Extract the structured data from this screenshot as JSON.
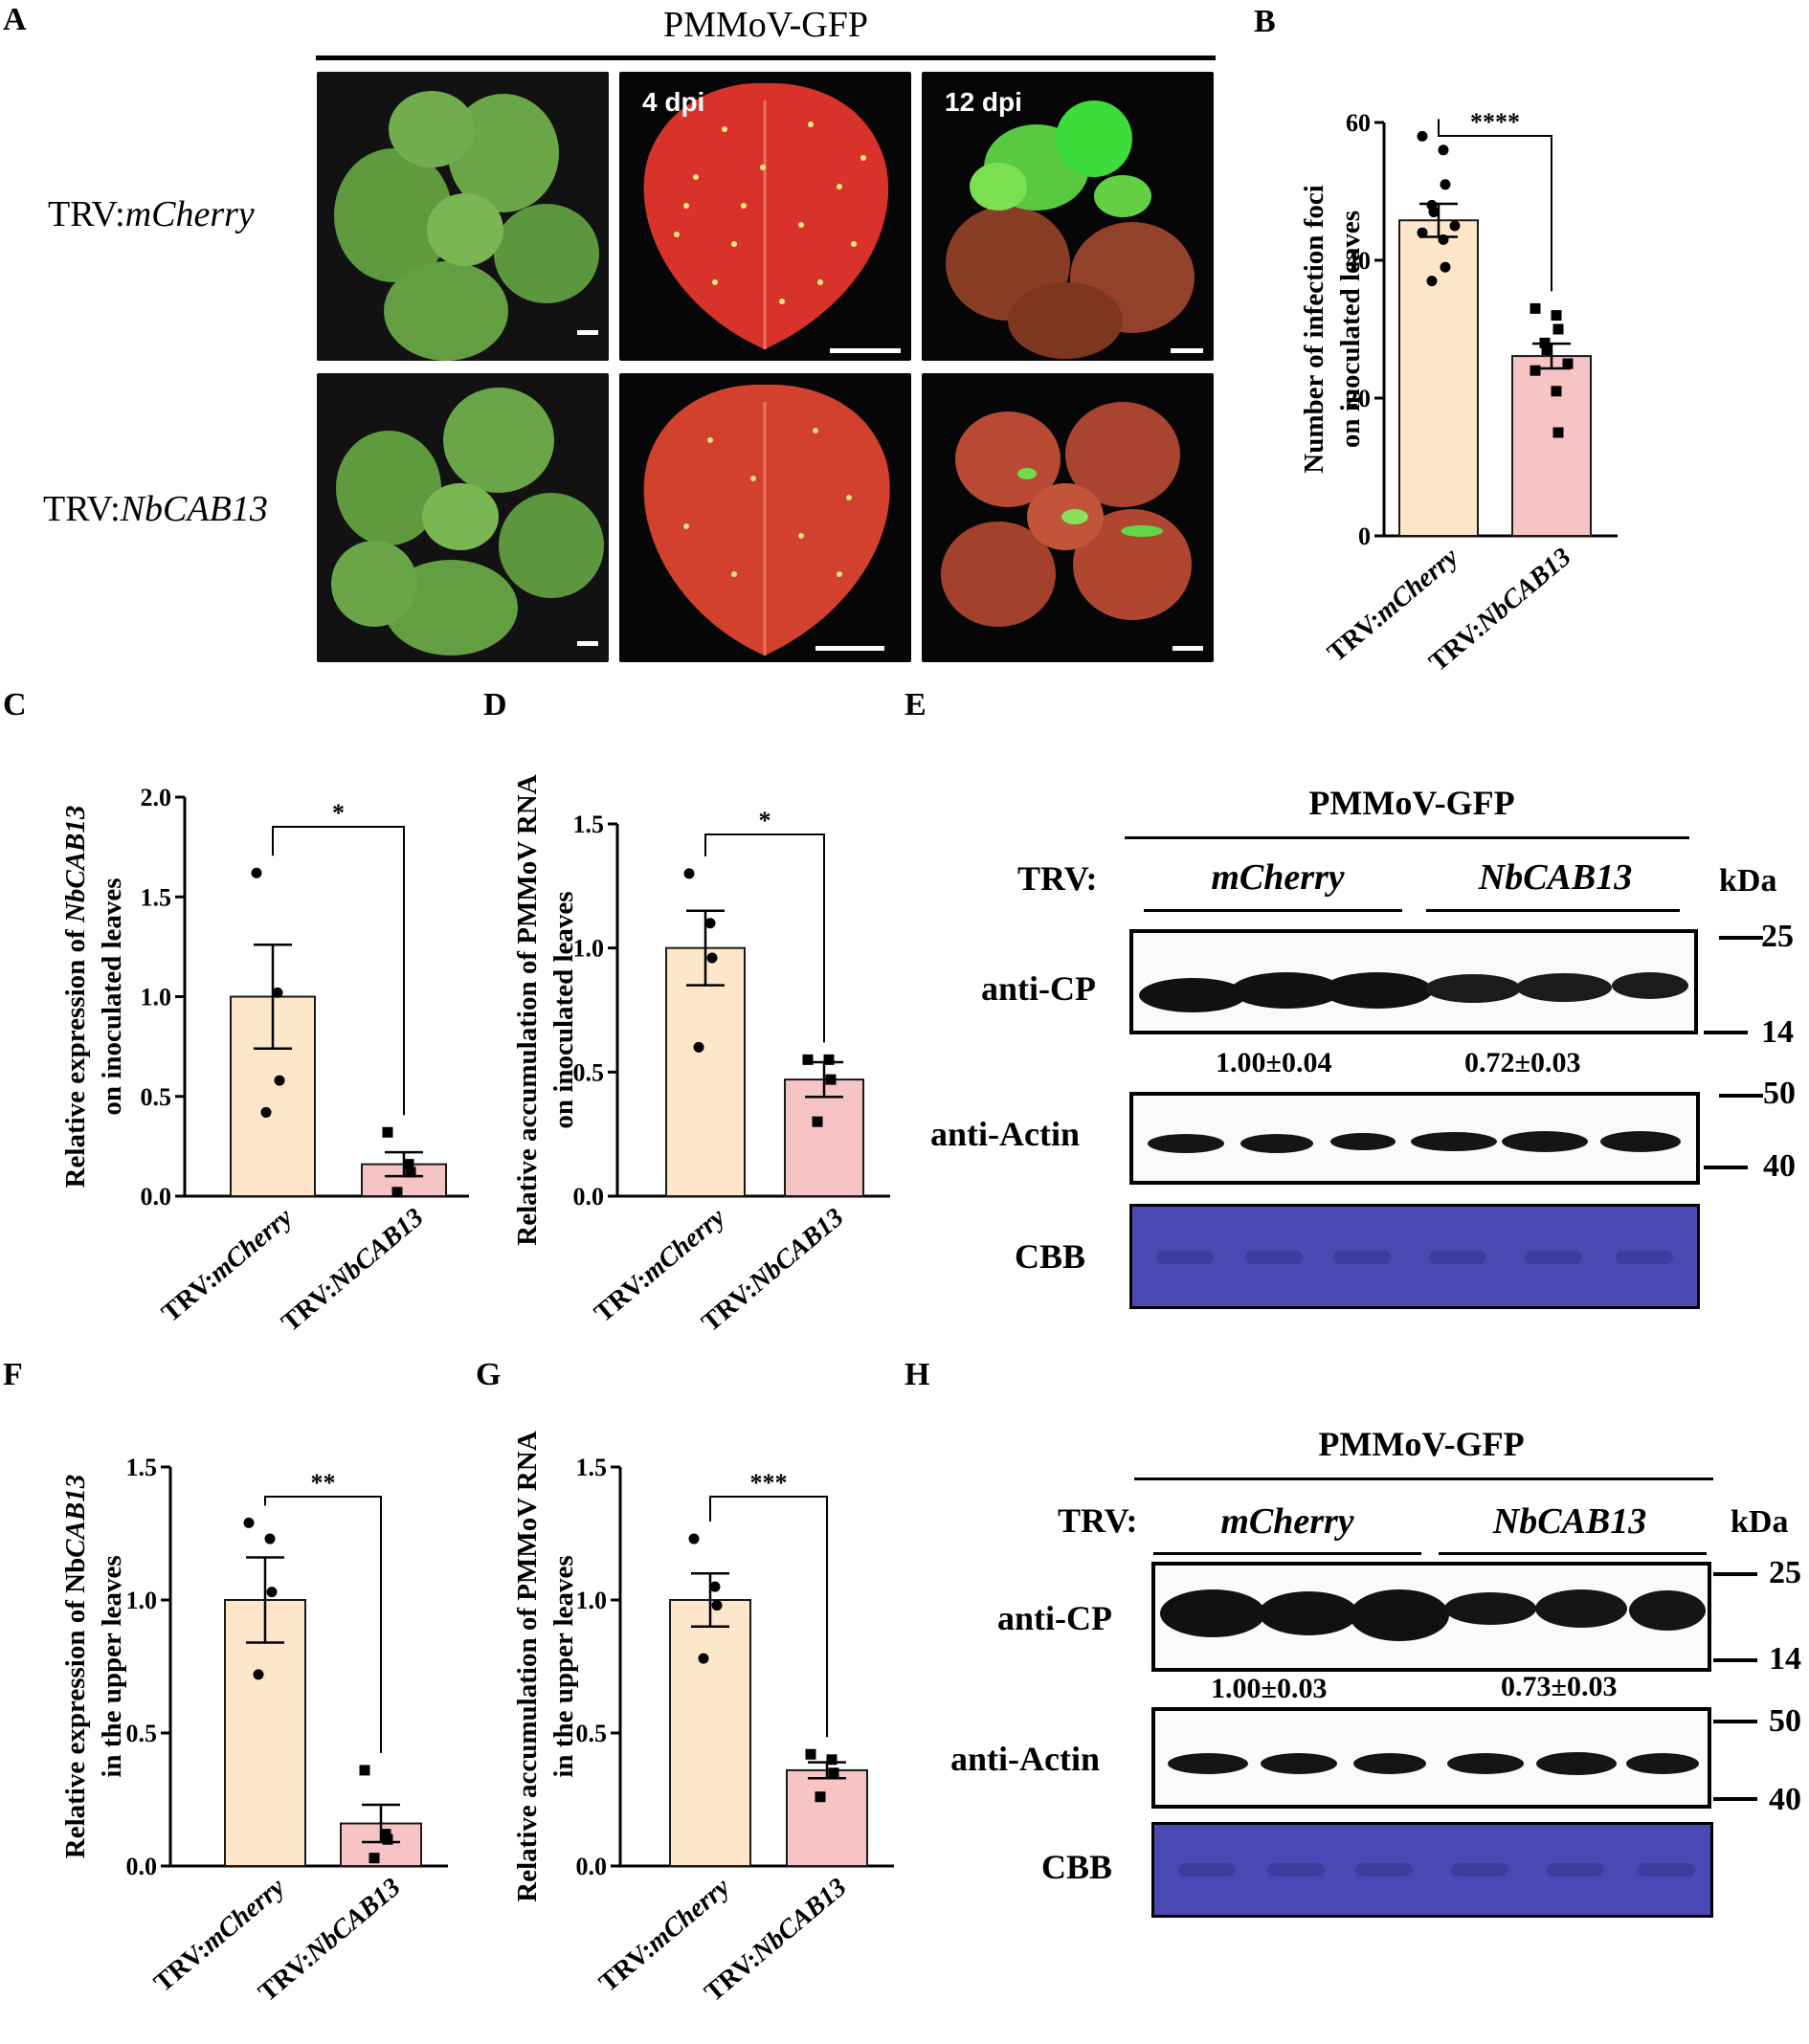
{
  "figure": {
    "panels": {
      "A": "A",
      "B": "B",
      "C": "C",
      "D": "D",
      "E": "E",
      "F": "F",
      "G": "G",
      "H": "H"
    },
    "panelA": {
      "header": "PMMoV-GFP",
      "row_labels": [
        {
          "prefix": "TRV:",
          "name": "mCherry"
        },
        {
          "prefix": "TRV:",
          "name": "NbCAB13"
        }
      ],
      "time_labels": [
        "4 dpi",
        "12 dpi"
      ]
    },
    "western_E": {
      "title": "PMMoV-GFP",
      "trv_label": "TRV:",
      "group_labels": [
        "mCherry",
        "NbCAB13"
      ],
      "kda_label": "kDa",
      "row_labels": [
        "anti-CP",
        "anti-Actin",
        "CBB"
      ],
      "markers": [
        "25",
        "14",
        "50",
        "40"
      ],
      "quant": [
        "1.00±0.04",
        "0.72±0.03"
      ]
    },
    "western_H": {
      "title": "PMMoV-GFP",
      "trv_label": "TRV:",
      "group_labels": [
        "mCherry",
        "NbCAB13"
      ],
      "kda_label": "kDa",
      "row_labels": [
        "anti-CP",
        "anti-Actin",
        "CBB"
      ],
      "markers": [
        "25",
        "14",
        "50",
        "40"
      ],
      "quant": [
        "1.00±0.03",
        "0.73±0.03"
      ]
    },
    "colors": {
      "mcherry_bar": "#fde6c9",
      "cab13_bar": "#f6c4c4",
      "cbb": "#4a49b3"
    }
  },
  "chart_data": [
    {
      "panel": "B",
      "type": "bar",
      "ylabel": [
        "Number of infection foci",
        "on inoculated leaves"
      ],
      "categories": [
        {
          "prefix": "TRV:",
          "name": "mCherry"
        },
        {
          "prefix": "TRV:",
          "name": "NbCAB13"
        }
      ],
      "values": [
        45.8,
        26.1
      ],
      "errors": [
        2.4,
        1.8
      ],
      "ylim": [
        0,
        60
      ],
      "yticks": [
        "0",
        "20",
        "40",
        "60"
      ],
      "significance": "****",
      "points": [
        [
          58,
          56,
          51,
          48,
          47,
          45,
          44,
          43,
          39,
          37
        ],
        [
          33,
          32,
          30,
          28,
          27,
          25,
          24,
          21,
          15
        ]
      ]
    },
    {
      "panel": "C",
      "type": "bar",
      "ylabel": [
        {
          "text": "Relative expression of "
        },
        {
          "text": "NbCAB13",
          "italic": true
        }
      ],
      "ylabel2": "on inoculated leaves",
      "categories": [
        {
          "prefix": "TRV:",
          "name": "mCherry"
        },
        {
          "prefix": "TRV:",
          "name": "NbCAB13"
        }
      ],
      "values": [
        1.0,
        0.16
      ],
      "errors": [
        0.26,
        0.06
      ],
      "ylim": [
        0,
        2.0
      ],
      "yticks": [
        "0.0",
        "0.5",
        "1.0",
        "1.5",
        "2.0"
      ],
      "significance": "*",
      "points": [
        [
          1.62,
          1.02,
          0.58,
          0.42
        ],
        [
          0.32,
          0.16,
          0.12,
          0.02
        ]
      ]
    },
    {
      "panel": "D",
      "type": "bar",
      "ylabel": [
        {
          "text": "Relative accumulation of PMMoV RNA"
        }
      ],
      "ylabel2": "on inoculated leaves",
      "categories": [
        {
          "prefix": "TRV:",
          "name": "mCherry"
        },
        {
          "prefix": "TRV:",
          "name": "NbCAB13"
        }
      ],
      "values": [
        1.0,
        0.47
      ],
      "errors": [
        0.15,
        0.07
      ],
      "ylim": [
        0,
        1.5
      ],
      "yticks": [
        "0.0",
        "0.5",
        "1.0",
        "1.5"
      ],
      "significance": "*",
      "points": [
        [
          1.3,
          1.1,
          0.96,
          0.6
        ],
        [
          0.55,
          0.55,
          0.47,
          0.3
        ]
      ]
    },
    {
      "panel": "F",
      "type": "bar",
      "ylabel": [
        {
          "text": "Relative expression of Nb"
        },
        {
          "text": "CAB13",
          "italic": true
        }
      ],
      "ylabel2": "in the upper leaves",
      "categories": [
        {
          "prefix": "TRV:",
          "name": "mCherry"
        },
        {
          "prefix": "TRV:",
          "name": "NbCAB13"
        }
      ],
      "values": [
        1.0,
        0.16
      ],
      "errors": [
        0.16,
        0.07
      ],
      "ylim": [
        0,
        1.5
      ],
      "yticks": [
        "0.0",
        "0.5",
        "1.0",
        "1.5"
      ],
      "significance": "**",
      "points": [
        [
          1.29,
          1.23,
          1.03,
          0.72
        ],
        [
          0.36,
          0.12,
          0.1,
          0.03
        ]
      ]
    },
    {
      "panel": "G",
      "type": "bar",
      "ylabel": [
        {
          "text": "Relative accumulation of PMMoV RNA"
        }
      ],
      "ylabel2": "in the upper leaves",
      "categories": [
        {
          "prefix": "TRV:",
          "name": "mCherry"
        },
        {
          "prefix": "TRV:",
          "name": "NbCAB13"
        }
      ],
      "values": [
        1.0,
        0.36
      ],
      "errors": [
        0.1,
        0.03
      ],
      "ylim": [
        0,
        1.5
      ],
      "yticks": [
        "0.0",
        "0.5",
        "1.0",
        "1.5"
      ],
      "significance": "***",
      "points": [
        [
          1.23,
          1.05,
          0.98,
          0.78
        ],
        [
          0.42,
          0.4,
          0.35,
          0.26
        ]
      ]
    }
  ]
}
